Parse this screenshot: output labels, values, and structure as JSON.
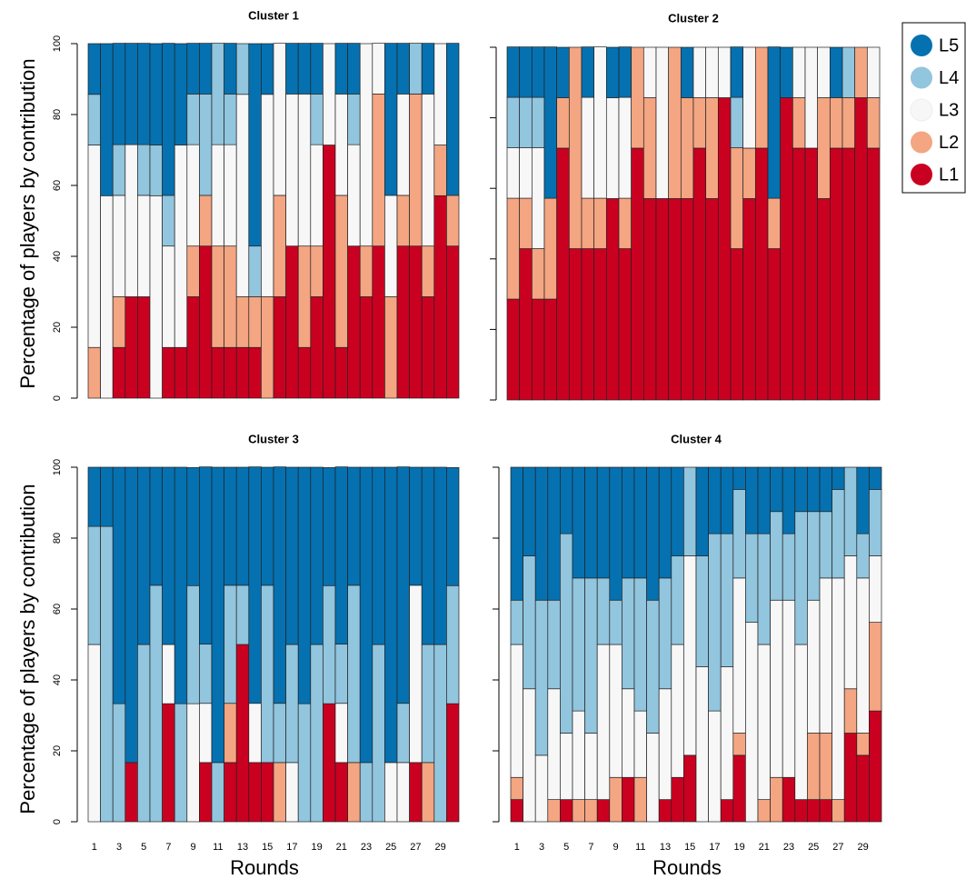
{
  "chart_data": [
    {
      "type": "bar",
      "stacked": true,
      "title": "Cluster 1",
      "ylabel": "Percentage of players by contribution",
      "ylim": [
        0,
        100
      ],
      "yticks": [
        0,
        20,
        40,
        60,
        80,
        100
      ],
      "series": [
        {
          "name": "L1",
          "color": "#ca0020",
          "values": [
            0,
            0,
            14.3,
            28.6,
            28.6,
            0,
            14.3,
            14.3,
            28.6,
            42.9,
            14.3,
            14.3,
            14.3,
            14.3,
            0,
            28.6,
            42.9,
            14.3,
            28.6,
            71.4,
            14.3,
            42.9,
            28.6,
            42.9,
            0,
            42.9,
            42.9,
            28.6,
            57.1,
            42.9
          ]
        },
        {
          "name": "L2",
          "color": "#f4a582",
          "values": [
            14.3,
            0,
            14.3,
            0,
            0,
            0,
            0,
            0,
            14.3,
            14.3,
            28.6,
            28.6,
            14.3,
            14.3,
            28.6,
            28.6,
            0,
            28.6,
            14.3,
            0,
            42.9,
            0,
            14.3,
            42.9,
            28.6,
            14.3,
            42.9,
            14.3,
            14.3,
            14.3
          ]
        },
        {
          "name": "L3",
          "color": "#f7f7f7",
          "values": [
            57.1,
            57.1,
            28.6,
            42.9,
            28.6,
            57.1,
            28.6,
            57.1,
            28.6,
            0,
            28.6,
            28.6,
            57.1,
            0,
            57.1,
            42.9,
            42.9,
            42.9,
            28.6,
            28.6,
            28.6,
            28.6,
            57.1,
            14.3,
            28.6,
            28.6,
            0,
            42.9,
            28.6,
            0
          ]
        },
        {
          "name": "L4",
          "color": "#92c5de",
          "values": [
            14.3,
            0,
            14.3,
            0,
            14.3,
            14.3,
            14.3,
            0,
            14.3,
            28.6,
            28.6,
            14.3,
            14.3,
            14.3,
            0,
            0,
            0,
            0,
            14.3,
            0,
            0,
            14.3,
            0,
            0,
            0,
            0,
            14.3,
            0,
            0,
            0
          ]
        },
        {
          "name": "L5",
          "color": "#0571b0",
          "values": [
            14.3,
            42.9,
            28.6,
            28.6,
            28.6,
            28.6,
            42.9,
            28.6,
            14.3,
            14.3,
            0,
            14.3,
            0,
            57.1,
            14.3,
            0,
            14.3,
            14.3,
            14.3,
            0,
            14.3,
            14.3,
            0,
            0,
            42.9,
            14.3,
            0,
            14.3,
            0,
            42.9
          ]
        }
      ]
    },
    {
      "type": "bar",
      "stacked": true,
      "title": "Cluster 2",
      "ylim": [
        0,
        100
      ],
      "yticks": [
        0,
        20,
        40,
        60,
        80,
        100
      ],
      "series": [
        {
          "name": "L1",
          "color": "#ca0020",
          "values": [
            28.6,
            42.9,
            28.6,
            28.6,
            71.4,
            42.9,
            42.9,
            42.9,
            57.1,
            42.9,
            71.4,
            57.1,
            57.1,
            57.1,
            57.1,
            71.4,
            57.1,
            85.7,
            42.9,
            57.1,
            71.4,
            42.9,
            85.7,
            71.4,
            71.4,
            57.1,
            71.4,
            71.4,
            85.7,
            71.4
          ]
        },
        {
          "name": "L2",
          "color": "#f4a582",
          "values": [
            28.6,
            14.3,
            14.3,
            28.6,
            14.3,
            57.1,
            14.3,
            14.3,
            0,
            14.3,
            28.6,
            28.6,
            0,
            42.9,
            28.6,
            14.3,
            28.6,
            0,
            28.6,
            14.3,
            28.6,
            14.3,
            0,
            14.3,
            0,
            28.6,
            14.3,
            14.3,
            14.3,
            14.3
          ]
        },
        {
          "name": "L3",
          "color": "#f7f7f7",
          "values": [
            14.3,
            14.3,
            28.6,
            0,
            0,
            0,
            28.6,
            42.9,
            28.6,
            28.6,
            0,
            14.3,
            42.9,
            0,
            0,
            14.3,
            14.3,
            14.3,
            0,
            28.6,
            0,
            0,
            0,
            14.3,
            28.6,
            14.3,
            0,
            0,
            0,
            14.3
          ]
        },
        {
          "name": "L4",
          "color": "#92c5de",
          "values": [
            14.3,
            14.3,
            14.3,
            0,
            0,
            0,
            0,
            0,
            0,
            0,
            0,
            0,
            0,
            0,
            0,
            0,
            0,
            0,
            14.3,
            0,
            0,
            0,
            0,
            0,
            0,
            0,
            0,
            14.3,
            0,
            0
          ]
        },
        {
          "name": "L5",
          "color": "#0571b0",
          "values": [
            14.3,
            14.3,
            14.3,
            42.9,
            14.3,
            0,
            14.3,
            0,
            14.3,
            14.3,
            0,
            0,
            0,
            0,
            14.3,
            0,
            0,
            0,
            14.3,
            0,
            0,
            42.9,
            14.3,
            0,
            0,
            0,
            14.3,
            0,
            0,
            0
          ]
        }
      ]
    },
    {
      "type": "bar",
      "stacked": true,
      "title": "Cluster 3",
      "ylabel": "Percentage of players by contribution",
      "xlabel": "Rounds",
      "categories": [
        1,
        null,
        3,
        null,
        5,
        null,
        7,
        null,
        9,
        null,
        11,
        null,
        13,
        null,
        15,
        null,
        17,
        null,
        19,
        null,
        21,
        null,
        23,
        null,
        25,
        null,
        27,
        null,
        29,
        null
      ],
      "ylim": [
        0,
        100
      ],
      "yticks": [
        0,
        20,
        40,
        60,
        80,
        100
      ],
      "series": [
        {
          "name": "L1",
          "color": "#ca0020",
          "values": [
            0,
            0,
            0,
            16.7,
            0,
            0,
            33.3,
            0,
            0,
            16.7,
            0,
            16.7,
            50,
            16.7,
            16.7,
            0,
            0,
            0,
            0,
            33.3,
            16.7,
            0,
            0,
            0,
            0,
            0,
            16.7,
            0,
            0,
            33.3
          ]
        },
        {
          "name": "L2",
          "color": "#f4a582",
          "values": [
            0,
            0,
            0,
            0,
            0,
            0,
            0,
            0,
            0,
            0,
            0,
            16.7,
            0,
            0,
            0,
            16.7,
            0,
            0,
            0,
            0,
            0,
            16.7,
            0,
            0,
            0,
            0,
            0,
            16.7,
            0,
            0
          ]
        },
        {
          "name": "L3",
          "color": "#f7f7f7",
          "values": [
            50,
            0,
            0,
            0,
            0,
            0,
            16.7,
            0,
            33.3,
            16.7,
            0,
            0,
            0,
            16.7,
            0,
            0,
            16.7,
            0,
            0,
            0,
            16.7,
            0,
            0,
            0,
            16.7,
            16.7,
            50,
            0,
            0,
            0
          ]
        },
        {
          "name": "L4",
          "color": "#92c5de",
          "values": [
            33.3,
            83.3,
            33.3,
            0,
            50,
            66.7,
            0,
            33.3,
            33.3,
            16.7,
            16.7,
            33.3,
            16.7,
            0,
            50,
            16.7,
            33.3,
            33.3,
            50,
            33.3,
            16.7,
            50,
            16.7,
            50,
            0,
            16.7,
            0,
            33.3,
            50,
            33.3
          ]
        },
        {
          "name": "L5",
          "color": "#0571b0",
          "values": [
            16.7,
            16.7,
            66.7,
            83.3,
            50,
            33.3,
            50,
            66.7,
            33.3,
            50,
            83.3,
            33.3,
            33.3,
            66.7,
            33.3,
            66.7,
            50,
            66.7,
            50,
            33.3,
            50,
            33.3,
            83.3,
            50,
            83.3,
            66.7,
            33.3,
            50,
            50,
            33.3
          ]
        }
      ]
    },
    {
      "type": "bar",
      "stacked": true,
      "title": "Cluster 4",
      "xlabel": "Rounds",
      "categories": [
        1,
        null,
        3,
        null,
        5,
        null,
        7,
        null,
        9,
        null,
        11,
        null,
        13,
        null,
        15,
        null,
        17,
        null,
        19,
        null,
        21,
        null,
        23,
        null,
        25,
        null,
        27,
        null,
        29,
        null
      ],
      "ylim": [
        0,
        100
      ],
      "yticks": [
        0,
        20,
        40,
        60,
        80,
        100
      ],
      "series": [
        {
          "name": "L1",
          "color": "#ca0020",
          "values": [
            6.25,
            0,
            0,
            0,
            6.25,
            0,
            0,
            6.25,
            0,
            12.5,
            0,
            0,
            6.25,
            12.5,
            18.75,
            0,
            0,
            6.25,
            18.75,
            0,
            0,
            0,
            12.5,
            6.25,
            6.25,
            6.25,
            0,
            25,
            18.75,
            31.25
          ]
        },
        {
          "name": "L2",
          "color": "#f4a582",
          "values": [
            6.25,
            0,
            0,
            6.25,
            0,
            6.25,
            6.25,
            0,
            12.5,
            0,
            12.5,
            0,
            0,
            0,
            0,
            0,
            0,
            0,
            6.25,
            0,
            6.25,
            12.5,
            0,
            0,
            18.75,
            18.75,
            6.25,
            12.5,
            6.25,
            25
          ]
        },
        {
          "name": "L3",
          "color": "#f7f7f7",
          "values": [
            37.5,
            37.5,
            18.75,
            31.25,
            18.75,
            25,
            18.75,
            43.75,
            37.5,
            25,
            18.75,
            25,
            31.25,
            37.5,
            56.25,
            43.75,
            31.25,
            37.5,
            43.75,
            56.25,
            43.75,
            50,
            50,
            43.75,
            37.5,
            43.75,
            62.5,
            37.5,
            43.75,
            18.75
          ]
        },
        {
          "name": "L4",
          "color": "#92c5de",
          "values": [
            12.5,
            37.5,
            43.75,
            25,
            56.25,
            37.5,
            43.75,
            18.75,
            12.5,
            31.25,
            37.5,
            37.5,
            31.25,
            25,
            25,
            31.25,
            50,
            37.5,
            25,
            25,
            31.25,
            25,
            18.75,
            37.5,
            25,
            18.75,
            25,
            25,
            12.5,
            18.75
          ]
        },
        {
          "name": "L5",
          "color": "#0571b0",
          "values": [
            37.5,
            25,
            37.5,
            37.5,
            18.75,
            31.25,
            31.25,
            31.25,
            37.5,
            31.25,
            31.25,
            37.5,
            31.25,
            25,
            0,
            25,
            18.75,
            18.75,
            6.25,
            18.75,
            18.75,
            12.5,
            18.75,
            12.5,
            12.5,
            12.5,
            6.25,
            0,
            18.75,
            6.25
          ]
        }
      ]
    }
  ]
}
